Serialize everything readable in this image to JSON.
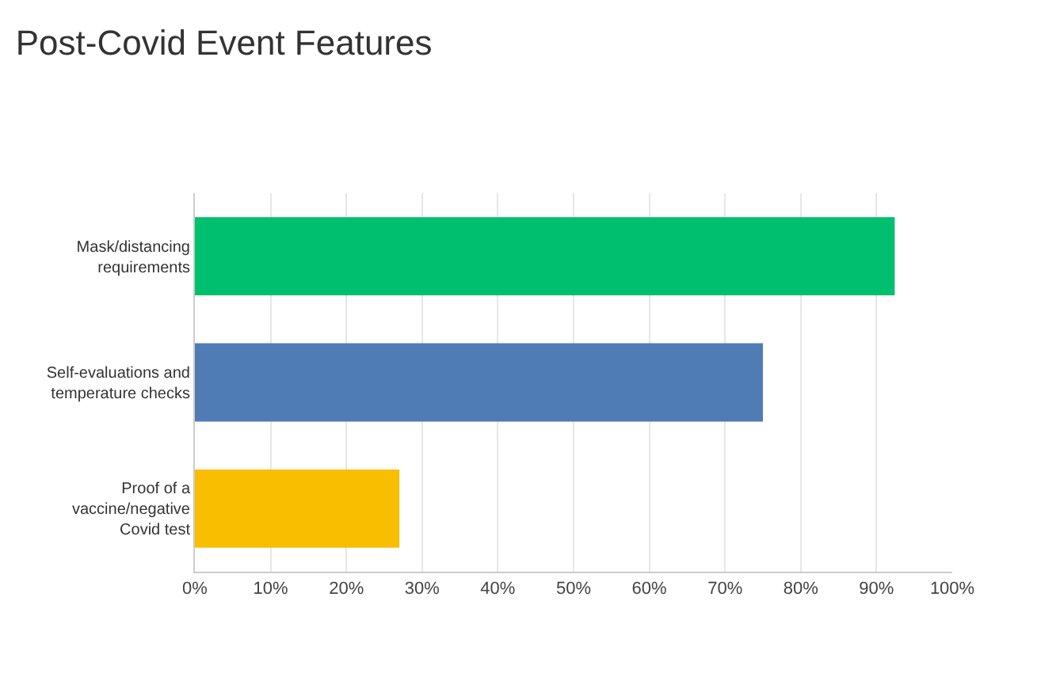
{
  "chart_data": {
    "type": "bar",
    "orientation": "horizontal",
    "title": "Post-Covid Event Features",
    "categories": [
      "Mask/distancing requirements",
      "Self-evaluations and temperature checks",
      "Proof of a vaccine/negative Covid test"
    ],
    "values": [
      92.4,
      75,
      27
    ],
    "colors": [
      "#00bf6f",
      "#507cb6",
      "#f9be00"
    ],
    "xlim": [
      0,
      100
    ],
    "xticks": [
      {
        "value": 0,
        "label": "0%"
      },
      {
        "value": 10,
        "label": "10%"
      },
      {
        "value": 20,
        "label": "20%"
      },
      {
        "value": 30,
        "label": "30%"
      },
      {
        "value": 40,
        "label": "40%"
      },
      {
        "value": 50,
        "label": "50%"
      },
      {
        "value": 60,
        "label": "60%"
      },
      {
        "value": 70,
        "label": "70%"
      },
      {
        "value": 80,
        "label": "80%"
      },
      {
        "value": 90,
        "label": "90%"
      },
      {
        "value": 100,
        "label": "100%"
      }
    ],
    "grid": "x",
    "legend": false
  }
}
